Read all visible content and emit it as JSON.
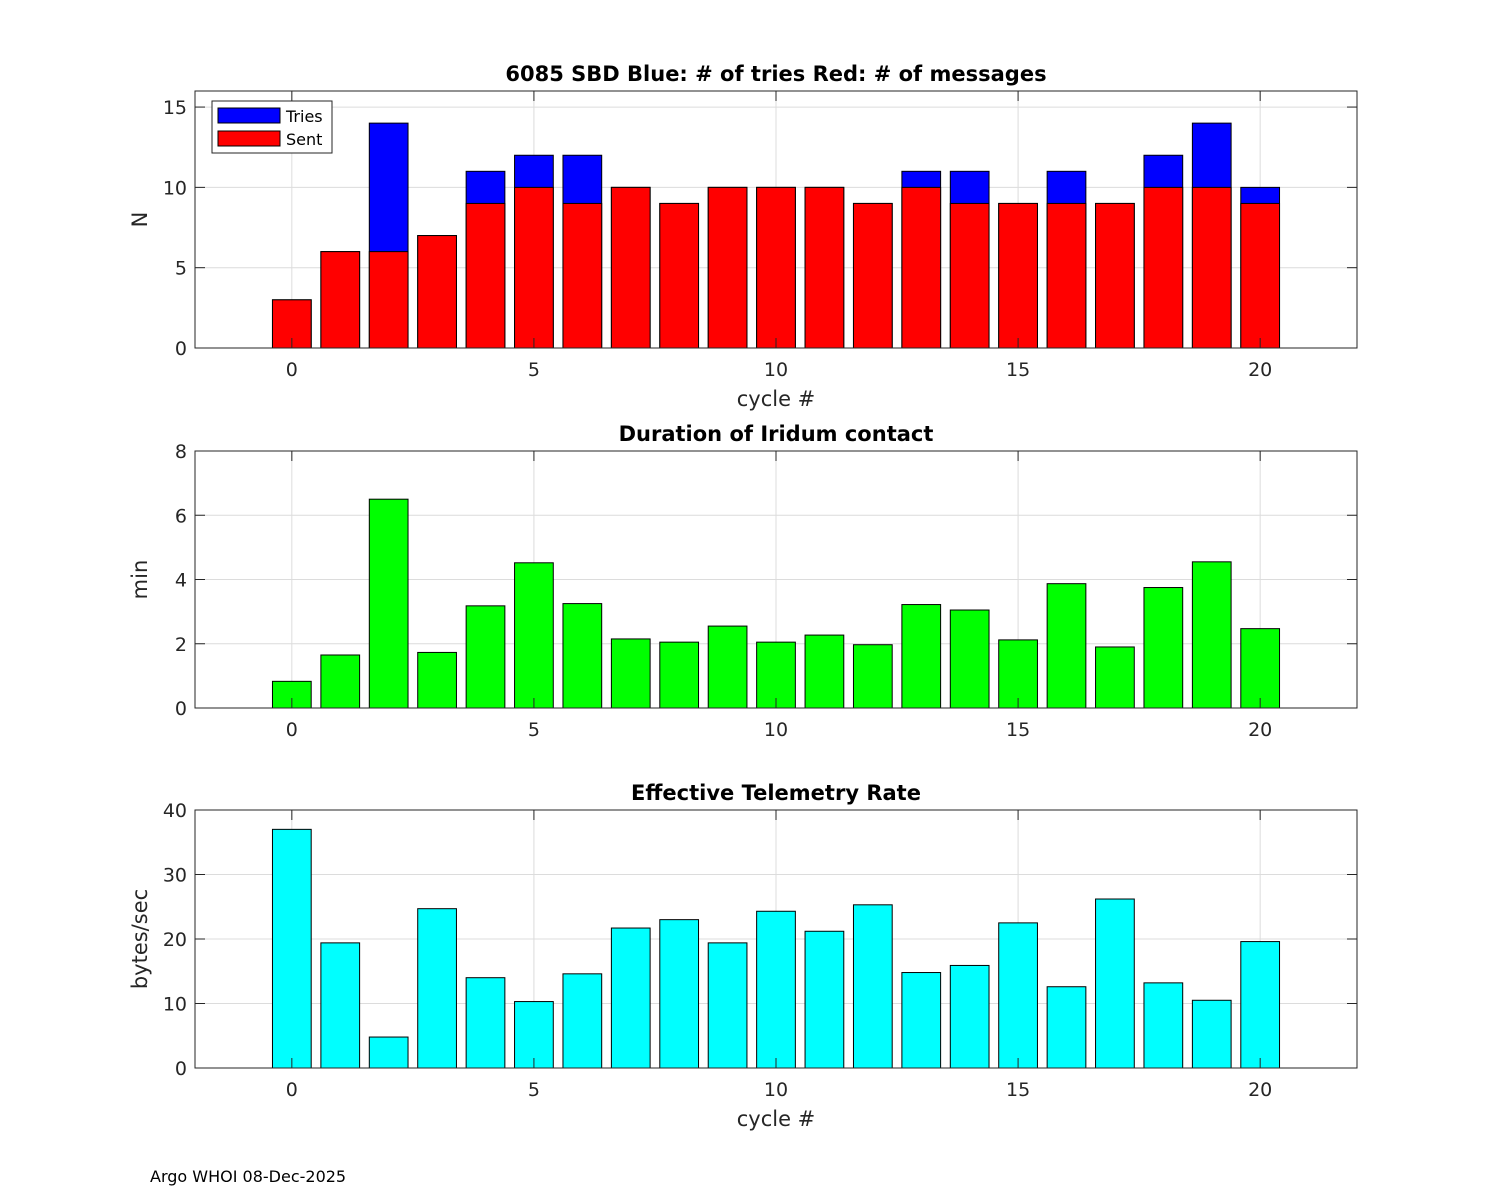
{
  "chart_data": [
    {
      "type": "bar",
      "stacked": "overlay",
      "title": "6085 SBD  Blue: # of tries   Red: # of messages",
      "xlabel": "cycle #",
      "ylabel": "N",
      "xlim": [
        -2,
        22
      ],
      "ylim": [
        0,
        16
      ],
      "xticks": [
        0,
        5,
        10,
        15,
        20
      ],
      "yticks": [
        0,
        5,
        10,
        15
      ],
      "grid": true,
      "legend_position": "top-left",
      "x": [
        0,
        1,
        2,
        3,
        4,
        5,
        6,
        7,
        8,
        9,
        10,
        11,
        12,
        13,
        14,
        15,
        16,
        17,
        18,
        19,
        20
      ],
      "series": [
        {
          "name": "Tries",
          "color": "#0000ff",
          "values": [
            3,
            6,
            14,
            7,
            11,
            12,
            12,
            10,
            9,
            10,
            10,
            10,
            9,
            11,
            11,
            9,
            11,
            9,
            12,
            14,
            10
          ]
        },
        {
          "name": "Sent",
          "color": "#ff0000",
          "values": [
            3,
            6,
            6,
            7,
            9,
            10,
            9,
            10,
            9,
            10,
            10,
            10,
            9,
            10,
            9,
            9,
            9,
            9,
            10,
            10,
            9
          ]
        }
      ]
    },
    {
      "type": "bar",
      "title": "Duration of Iridum contact",
      "xlabel": "",
      "ylabel": "min",
      "xlim": [
        -2,
        22
      ],
      "ylim": [
        0,
        8
      ],
      "xticks": [
        0,
        5,
        10,
        15,
        20
      ],
      "yticks": [
        0,
        2,
        4,
        6,
        8
      ],
      "grid": true,
      "x": [
        0,
        1,
        2,
        3,
        4,
        5,
        6,
        7,
        8,
        9,
        10,
        11,
        12,
        13,
        14,
        15,
        16,
        17,
        18,
        19,
        20
      ],
      "series": [
        {
          "name": "Duration",
          "color": "#00ff00",
          "values": [
            0.83,
            1.65,
            6.5,
            1.73,
            3.18,
            4.52,
            3.25,
            2.15,
            2.05,
            2.55,
            2.05,
            2.27,
            1.97,
            3.22,
            3.05,
            2.12,
            3.87,
            1.9,
            3.75,
            4.55,
            2.47
          ]
        }
      ]
    },
    {
      "type": "bar",
      "title": "Effective Telemetry Rate",
      "xlabel": "cycle #",
      "ylabel": "bytes/sec",
      "xlim": [
        -2,
        22
      ],
      "ylim": [
        0,
        40
      ],
      "xticks": [
        0,
        5,
        10,
        15,
        20
      ],
      "yticks": [
        0,
        10,
        20,
        30,
        40
      ],
      "grid": true,
      "x": [
        0,
        1,
        2,
        3,
        4,
        5,
        6,
        7,
        8,
        9,
        10,
        11,
        12,
        13,
        14,
        15,
        16,
        17,
        18,
        19,
        20
      ],
      "series": [
        {
          "name": "Rate",
          "color": "#00ffff",
          "values": [
            37,
            19.4,
            4.8,
            24.7,
            14,
            10.3,
            14.6,
            21.7,
            23,
            19.4,
            24.3,
            21.2,
            25.3,
            14.8,
            15.9,
            22.5,
            12.6,
            26.2,
            13.2,
            10.5,
            19.6
          ]
        }
      ]
    }
  ],
  "footer": "Argo WHOI 08-Dec-2025"
}
